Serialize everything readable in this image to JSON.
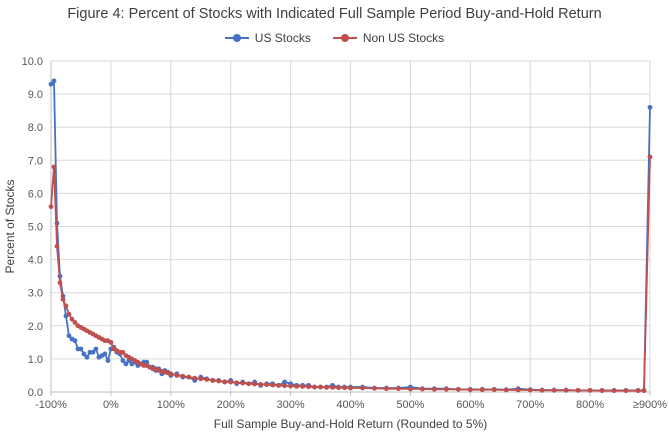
{
  "chart_data": {
    "type": "line",
    "title": "Figure 4: Percent of Stocks with Indicated Full Sample Period Buy-and-Hold Return",
    "xlabel": "Full Sample Buy-and-Hold Return (Rounded to 5%)",
    "ylabel": "Percent of Stocks",
    "ylim": [
      0,
      10
    ],
    "xlim": [
      -100,
      900
    ],
    "grid": true,
    "legend_position": "top-center",
    "y_ticks": [
      "0.0",
      "1.0",
      "2.0",
      "3.0",
      "4.0",
      "5.0",
      "6.0",
      "7.0",
      "8.0",
      "9.0",
      "10.0"
    ],
    "x_ticks": [
      {
        "value": -100,
        "label": "-100%"
      },
      {
        "value": 0,
        "label": "0%"
      },
      {
        "value": 100,
        "label": "100%"
      },
      {
        "value": 200,
        "label": "200%"
      },
      {
        "value": 300,
        "label": "300%"
      },
      {
        "value": 400,
        "label": "400%"
      },
      {
        "value": 500,
        "label": "500%"
      },
      {
        "value": 600,
        "label": "600%"
      },
      {
        "value": 700,
        "label": "700%"
      },
      {
        "value": 800,
        "label": "800%"
      },
      {
        "value": 900,
        "label": "≥900%"
      }
    ],
    "series": [
      {
        "name": "US Stocks",
        "color": "#4472C4",
        "points": [
          [
            -100,
            9.3
          ],
          [
            -95,
            9.4
          ],
          [
            -90,
            5.1
          ],
          [
            -85,
            3.5
          ],
          [
            -80,
            2.9
          ],
          [
            -75,
            2.3
          ],
          [
            -70,
            1.7
          ],
          [
            -65,
            1.6
          ],
          [
            -60,
            1.55
          ],
          [
            -55,
            1.3
          ],
          [
            -50,
            1.3
          ],
          [
            -45,
            1.15
          ],
          [
            -40,
            1.05
          ],
          [
            -35,
            1.2
          ],
          [
            -30,
            1.2
          ],
          [
            -25,
            1.3
          ],
          [
            -20,
            1.05
          ],
          [
            -15,
            1.1
          ],
          [
            -10,
            1.15
          ],
          [
            -5,
            0.95
          ],
          [
            0,
            1.3
          ],
          [
            5,
            1.35
          ],
          [
            10,
            1.2
          ],
          [
            15,
            1.15
          ],
          [
            20,
            0.95
          ],
          [
            25,
            0.85
          ],
          [
            30,
            0.95
          ],
          [
            35,
            0.85
          ],
          [
            40,
            0.9
          ],
          [
            45,
            0.8
          ],
          [
            50,
            0.85
          ],
          [
            55,
            0.9
          ],
          [
            60,
            0.9
          ],
          [
            65,
            0.75
          ],
          [
            70,
            0.75
          ],
          [
            75,
            0.65
          ],
          [
            80,
            0.7
          ],
          [
            85,
            0.55
          ],
          [
            90,
            0.65
          ],
          [
            95,
            0.6
          ],
          [
            100,
            0.5
          ],
          [
            110,
            0.55
          ],
          [
            120,
            0.45
          ],
          [
            130,
            0.45
          ],
          [
            140,
            0.35
          ],
          [
            150,
            0.45
          ],
          [
            160,
            0.4
          ],
          [
            170,
            0.35
          ],
          [
            180,
            0.35
          ],
          [
            190,
            0.3
          ],
          [
            200,
            0.35
          ],
          [
            210,
            0.25
          ],
          [
            220,
            0.3
          ],
          [
            230,
            0.25
          ],
          [
            240,
            0.3
          ],
          [
            250,
            0.2
          ],
          [
            260,
            0.25
          ],
          [
            270,
            0.25
          ],
          [
            280,
            0.2
          ],
          [
            290,
            0.3
          ],
          [
            300,
            0.25
          ],
          [
            310,
            0.2
          ],
          [
            320,
            0.2
          ],
          [
            330,
            0.2
          ],
          [
            340,
            0.15
          ],
          [
            350,
            0.15
          ],
          [
            360,
            0.15
          ],
          [
            370,
            0.2
          ],
          [
            380,
            0.15
          ],
          [
            390,
            0.15
          ],
          [
            400,
            0.15
          ],
          [
            420,
            0.15
          ],
          [
            440,
            0.12
          ],
          [
            460,
            0.12
          ],
          [
            480,
            0.12
          ],
          [
            500,
            0.15
          ],
          [
            520,
            0.1
          ],
          [
            540,
            0.1
          ],
          [
            560,
            0.1
          ],
          [
            580,
            0.08
          ],
          [
            600,
            0.08
          ],
          [
            620,
            0.08
          ],
          [
            640,
            0.08
          ],
          [
            660,
            0.07
          ],
          [
            680,
            0.1
          ],
          [
            700,
            0.07
          ],
          [
            720,
            0.06
          ],
          [
            740,
            0.06
          ],
          [
            760,
            0.06
          ],
          [
            780,
            0.05
          ],
          [
            800,
            0.05
          ],
          [
            820,
            0.05
          ],
          [
            840,
            0.05
          ],
          [
            860,
            0.05
          ],
          [
            880,
            0.05
          ],
          [
            890,
            0.05
          ],
          [
            900,
            8.6
          ]
        ]
      },
      {
        "name": "Non US Stocks",
        "color": "#C0504D",
        "points": [
          [
            -100,
            5.6
          ],
          [
            -95,
            6.8
          ],
          [
            -90,
            4.4
          ],
          [
            -85,
            3.3
          ],
          [
            -80,
            2.8
          ],
          [
            -75,
            2.6
          ],
          [
            -70,
            2.35
          ],
          [
            -65,
            2.2
          ],
          [
            -60,
            2.1
          ],
          [
            -55,
            2.0
          ],
          [
            -50,
            1.95
          ],
          [
            -45,
            1.9
          ],
          [
            -40,
            1.85
          ],
          [
            -35,
            1.8
          ],
          [
            -30,
            1.75
          ],
          [
            -25,
            1.7
          ],
          [
            -20,
            1.65
          ],
          [
            -15,
            1.6
          ],
          [
            -10,
            1.55
          ],
          [
            -5,
            1.55
          ],
          [
            0,
            1.5
          ],
          [
            5,
            1.3
          ],
          [
            10,
            1.25
          ],
          [
            15,
            1.2
          ],
          [
            20,
            1.2
          ],
          [
            25,
            1.1
          ],
          [
            30,
            1.05
          ],
          [
            35,
            1.0
          ],
          [
            40,
            0.95
          ],
          [
            45,
            0.9
          ],
          [
            50,
            0.85
          ],
          [
            55,
            0.8
          ],
          [
            60,
            0.8
          ],
          [
            65,
            0.75
          ],
          [
            70,
            0.7
          ],
          [
            75,
            0.7
          ],
          [
            80,
            0.65
          ],
          [
            85,
            0.62
          ],
          [
            90,
            0.6
          ],
          [
            95,
            0.58
          ],
          [
            100,
            0.55
          ],
          [
            110,
            0.5
          ],
          [
            120,
            0.48
          ],
          [
            130,
            0.45
          ],
          [
            140,
            0.42
          ],
          [
            150,
            0.4
          ],
          [
            160,
            0.38
          ],
          [
            170,
            0.35
          ],
          [
            180,
            0.33
          ],
          [
            190,
            0.31
          ],
          [
            200,
            0.3
          ],
          [
            210,
            0.28
          ],
          [
            220,
            0.27
          ],
          [
            230,
            0.25
          ],
          [
            240,
            0.24
          ],
          [
            250,
            0.23
          ],
          [
            260,
            0.22
          ],
          [
            270,
            0.21
          ],
          [
            280,
            0.2
          ],
          [
            290,
            0.19
          ],
          [
            300,
            0.18
          ],
          [
            310,
            0.17
          ],
          [
            320,
            0.17
          ],
          [
            330,
            0.16
          ],
          [
            340,
            0.15
          ],
          [
            350,
            0.15
          ],
          [
            360,
            0.14
          ],
          [
            370,
            0.14
          ],
          [
            380,
            0.13
          ],
          [
            390,
            0.13
          ],
          [
            400,
            0.12
          ],
          [
            420,
            0.12
          ],
          [
            440,
            0.11
          ],
          [
            460,
            0.1
          ],
          [
            480,
            0.1
          ],
          [
            500,
            0.09
          ],
          [
            520,
            0.09
          ],
          [
            540,
            0.08
          ],
          [
            560,
            0.08
          ],
          [
            580,
            0.08
          ],
          [
            600,
            0.07
          ],
          [
            620,
            0.07
          ],
          [
            640,
            0.07
          ],
          [
            660,
            0.06
          ],
          [
            680,
            0.06
          ],
          [
            700,
            0.06
          ],
          [
            720,
            0.05
          ],
          [
            740,
            0.05
          ],
          [
            760,
            0.05
          ],
          [
            780,
            0.05
          ],
          [
            800,
            0.05
          ],
          [
            820,
            0.04
          ],
          [
            840,
            0.04
          ],
          [
            860,
            0.04
          ],
          [
            880,
            0.04
          ],
          [
            890,
            0.04
          ],
          [
            900,
            7.1
          ]
        ]
      }
    ]
  }
}
